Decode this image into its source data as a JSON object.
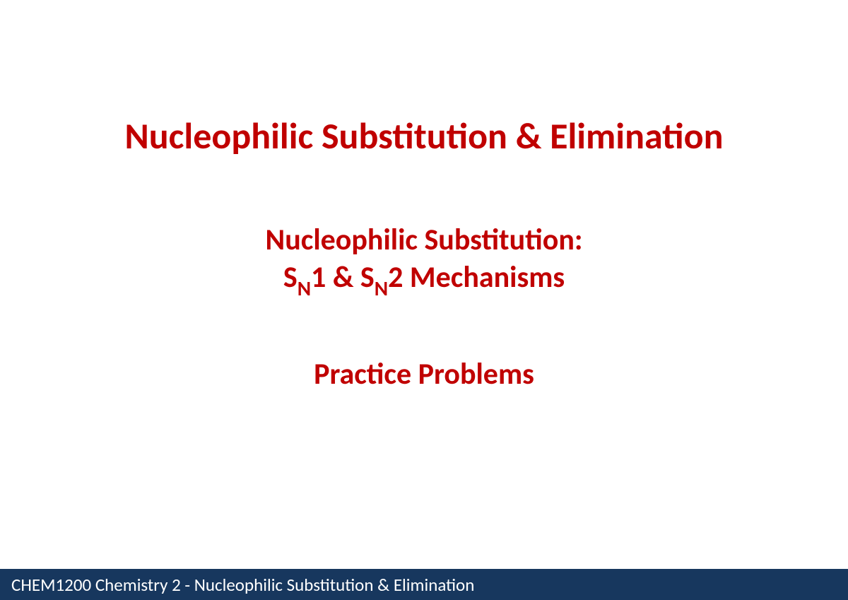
{
  "slide": {
    "main_title": "Nucleophilic Substitution & Elimination",
    "subtitle_line1": "Nucleophilic Substitution:",
    "subtitle_line2_prefix": "S",
    "subtitle_line2_sub1": "N",
    "subtitle_line2_mid1": "1 & S",
    "subtitle_line2_sub2": "N",
    "subtitle_line2_suffix": "2 Mechanisms",
    "practice_label": "Practice Problems"
  },
  "footer": {
    "text": "CHEM1200  Chemistry 2  -  Nucleophilic Substitution & Elimination"
  },
  "colors": {
    "title_color": "#c00000",
    "footer_bg": "#17375e",
    "footer_text": "#ffffff",
    "background": "#ffffff"
  },
  "typography": {
    "main_title_fontsize": 52,
    "subtitle_fontsize": 42,
    "footer_fontsize": 25,
    "font_family": "Calibri"
  }
}
